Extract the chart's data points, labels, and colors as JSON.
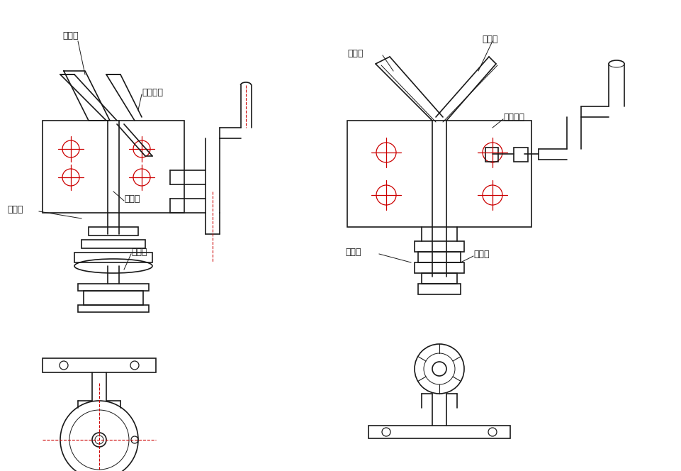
{
  "bg_color": "#ffffff",
  "line_color": "#1a1a1a",
  "red_color": "#cc0000",
  "line_width": 1.2,
  "thick_line": 2.0,
  "thin_line": 0.7,
  "labels": {
    "chuishuikou_left": "出水口",
    "gangyingqizuo_left": "感应器座",
    "jinshuikou_left": "进水口",
    "daociti_left": "导磁体",
    "youxiaoquan_left": "有效圈",
    "jinshuikou_right": "进水口",
    "chuishuikou_right": "出水口",
    "gangyingqizuo_right": "感应器座",
    "youxiaoquan_right": "有效圈",
    "daociti_right": "导磁体"
  },
  "font_size": 9
}
